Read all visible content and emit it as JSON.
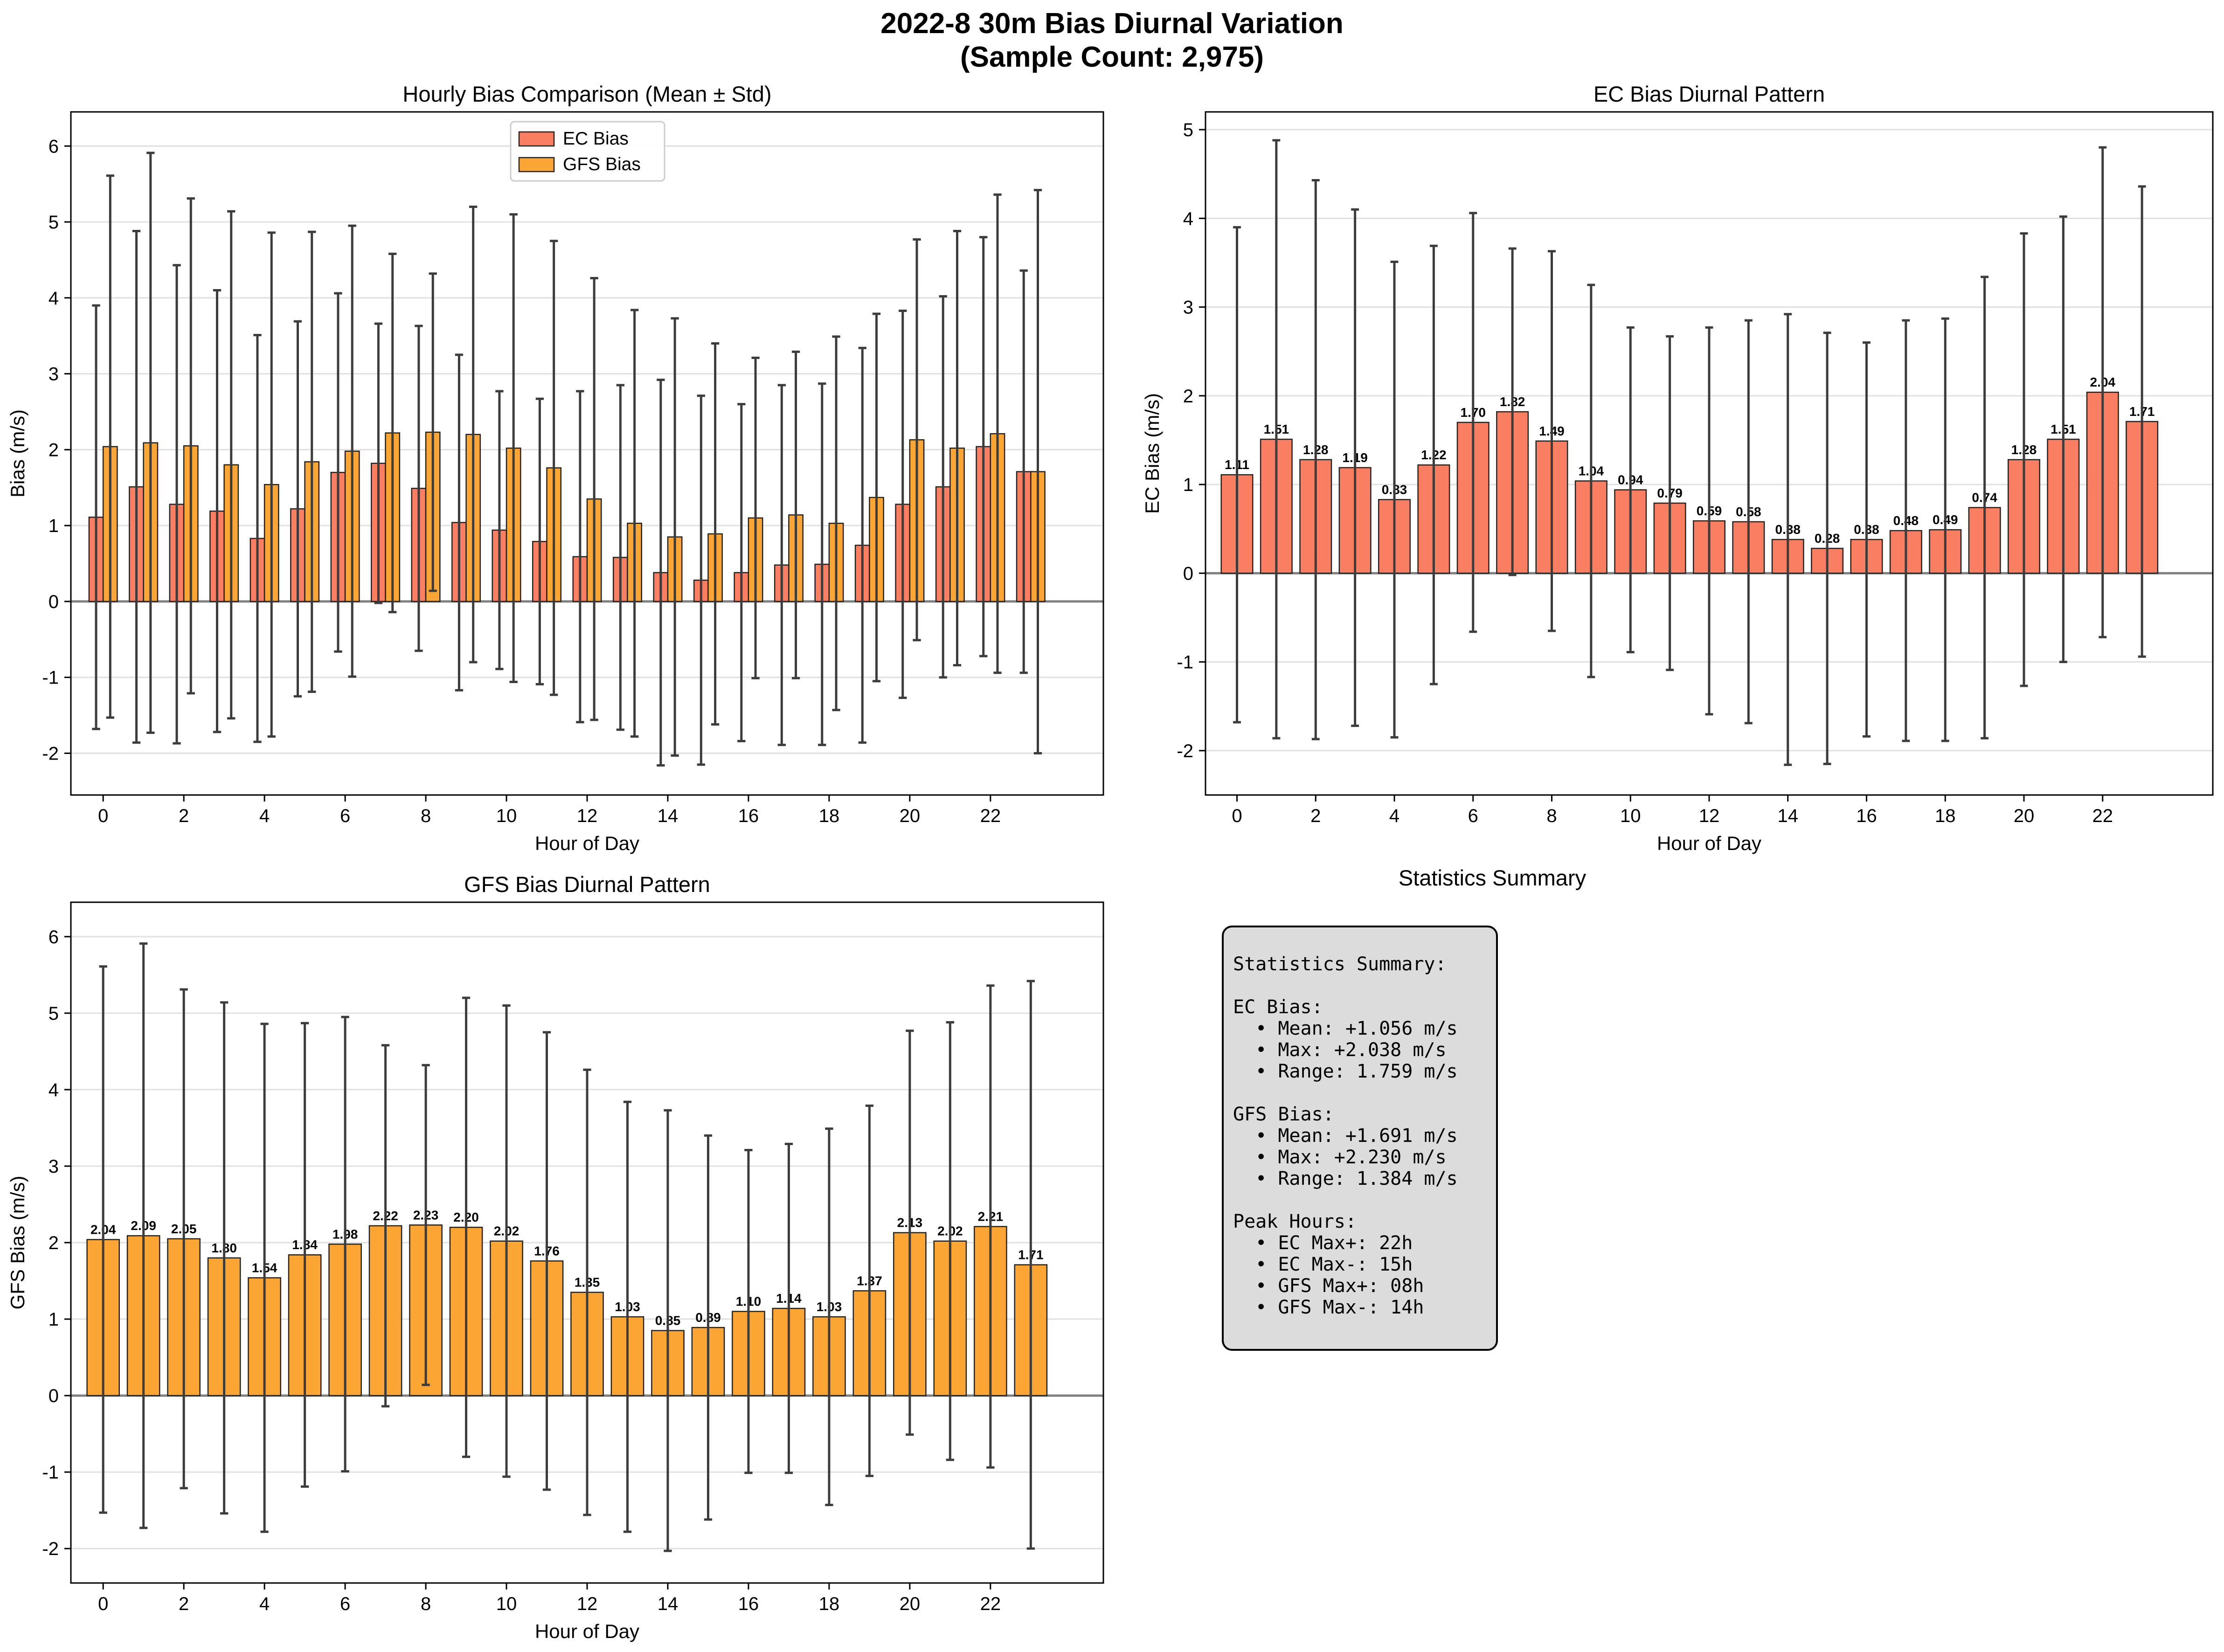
{
  "figure": {
    "title_line1": "2022-8 30m Bias Diurnal Variation",
    "title_line2": "(Sample Count: 2,975)"
  },
  "colors": {
    "ec": "#fa7e61",
    "gfs": "#fba535",
    "error_bar": "#3c3c3c",
    "zero_line": "#808080",
    "stats_box": "#dcdcdc"
  },
  "chart_data": [
    {
      "id": "comparison",
      "type": "bar",
      "title": "Hourly Bias Comparison (Mean ± Std)",
      "xlabel": "Hour of Day",
      "ylabel": "Bias (m/s)",
      "ylim": [
        -2.55,
        6.45
      ],
      "yticks": [
        -2,
        -1,
        0,
        1,
        2,
        3,
        4,
        5,
        6
      ],
      "xticks": [
        0,
        2,
        4,
        6,
        8,
        10,
        12,
        14,
        16,
        18,
        20,
        22
      ],
      "grid": true,
      "legend": "upper center",
      "bar_labels": false,
      "series": [
        {
          "name": "EC Bias",
          "color_key": "ec",
          "values": [
            1.11,
            1.51,
            1.28,
            1.19,
            0.83,
            1.22,
            1.7,
            1.82,
            1.49,
            1.04,
            0.94,
            0.79,
            0.59,
            0.58,
            0.38,
            0.28,
            0.38,
            0.48,
            0.49,
            0.74,
            1.28,
            1.51,
            2.04,
            1.71
          ],
          "std": [
            2.79,
            3.37,
            3.15,
            2.91,
            2.68,
            2.47,
            2.36,
            1.84,
            2.14,
            2.21,
            1.83,
            1.88,
            2.18,
            2.27,
            2.54,
            2.43,
            2.22,
            2.37,
            2.38,
            2.6,
            2.55,
            2.51,
            2.76,
            2.65
          ]
        },
        {
          "name": "GFS Bias",
          "color_key": "gfs",
          "values": [
            2.04,
            2.09,
            2.05,
            1.8,
            1.54,
            1.84,
            1.98,
            2.22,
            2.23,
            2.2,
            2.02,
            1.76,
            1.35,
            1.03,
            0.85,
            0.89,
            1.1,
            1.14,
            1.03,
            1.37,
            2.13,
            2.02,
            2.21,
            1.71
          ],
          "std": [
            3.57,
            3.82,
            3.26,
            3.34,
            3.32,
            3.03,
            2.97,
            2.36,
            2.09,
            3.0,
            3.08,
            2.99,
            2.91,
            2.81,
            2.88,
            2.51,
            2.11,
            2.15,
            2.46,
            2.42,
            2.64,
            2.86,
            3.15,
            3.71
          ]
        }
      ]
    },
    {
      "id": "ec",
      "type": "bar",
      "title": "EC Bias Diurnal Pattern",
      "xlabel": "Hour of Day",
      "ylabel": "EC Bias (m/s)",
      "ylim": [
        -2.5,
        5.2
      ],
      "yticks": [
        -2,
        -1,
        0,
        1,
        2,
        3,
        4,
        5
      ],
      "xticks": [
        0,
        2,
        4,
        6,
        8,
        10,
        12,
        14,
        16,
        18,
        20,
        22
      ],
      "grid": true,
      "bar_labels": true,
      "series": [
        {
          "color_key": "ec",
          "values": [
            1.11,
            1.51,
            1.28,
            1.19,
            0.83,
            1.22,
            1.7,
            1.82,
            1.49,
            1.04,
            0.94,
            0.79,
            0.59,
            0.58,
            0.38,
            0.28,
            0.38,
            0.48,
            0.49,
            0.74,
            1.28,
            1.51,
            2.04,
            1.71
          ],
          "labels": [
            "1.11",
            "1.51",
            "1.28",
            "1.19",
            "0.83",
            "1.22",
            "1.70",
            "1.82",
            "1.49",
            "1.04",
            "0.94",
            "0.79",
            "0.59",
            "0.58",
            "0.38",
            "0.28",
            "0.38",
            "0.48",
            "0.49",
            "0.74",
            "1.28",
            "1.51",
            "2.04",
            "1.71"
          ],
          "std": [
            2.79,
            3.37,
            3.15,
            2.91,
            2.68,
            2.47,
            2.36,
            1.84,
            2.14,
            2.21,
            1.83,
            1.88,
            2.18,
            2.27,
            2.54,
            2.43,
            2.22,
            2.37,
            2.38,
            2.6,
            2.55,
            2.51,
            2.76,
            2.65
          ]
        }
      ]
    },
    {
      "id": "gfs",
      "type": "bar",
      "title": "GFS Bias Diurnal Pattern",
      "xlabel": "Hour of Day",
      "ylabel": "GFS Bias (m/s)",
      "ylim": [
        -2.45,
        6.45
      ],
      "yticks": [
        -2,
        -1,
        0,
        1,
        2,
        3,
        4,
        5,
        6
      ],
      "xticks": [
        0,
        2,
        4,
        6,
        8,
        10,
        12,
        14,
        16,
        18,
        20,
        22
      ],
      "grid": true,
      "bar_labels": true,
      "series": [
        {
          "color_key": "gfs",
          "values": [
            2.04,
            2.09,
            2.05,
            1.8,
            1.54,
            1.84,
            1.98,
            2.22,
            2.23,
            2.2,
            2.02,
            1.76,
            1.35,
            1.03,
            0.85,
            0.89,
            1.1,
            1.14,
            1.03,
            1.37,
            2.13,
            2.02,
            2.21,
            1.71
          ],
          "labels": [
            "2.04",
            "2.09",
            "2.05",
            "1.80",
            "1.54",
            "1.84",
            "1.98",
            "2.22",
            "2.23",
            "2.20",
            "2.02",
            "1.76",
            "1.35",
            "1.03",
            "0.85",
            "0.89",
            "1.10",
            "1.14",
            "1.03",
            "1.37",
            "2.13",
            "2.02",
            "2.21",
            "1.71"
          ],
          "std": [
            3.57,
            3.82,
            3.26,
            3.34,
            3.32,
            3.03,
            2.97,
            2.36,
            2.09,
            3.0,
            3.08,
            2.99,
            2.91,
            2.81,
            2.88,
            2.51,
            2.11,
            2.15,
            2.46,
            2.42,
            2.64,
            2.86,
            3.15,
            3.71
          ]
        }
      ]
    }
  ],
  "stats": {
    "panel_title": "Statistics Summary",
    "text": "Statistics Summary:\n\nEC Bias:\n  • Mean: +1.056 m/s\n  • Max: +2.038 m/s\n  • Range: 1.759 m/s\n\nGFS Bias:\n  • Mean: +1.691 m/s\n  • Max: +2.230 m/s\n  • Range: 1.384 m/s\n\nPeak Hours:\n  • EC Max+: 22h\n  • EC Max-: 15h\n  • GFS Max+: 08h\n  • GFS Max-: 14h"
  }
}
